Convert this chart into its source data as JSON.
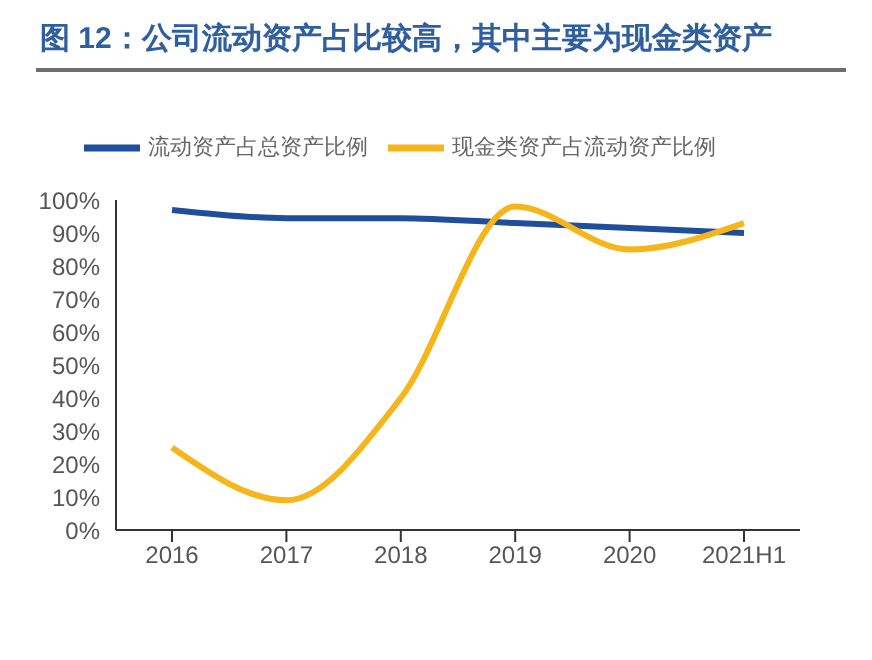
{
  "chart_data": {
    "type": "line",
    "title": "图 12：公司流动资产占比较高，其中主要为现金类资产",
    "categories": [
      "2016",
      "2017",
      "2018",
      "2019",
      "2020",
      "2021H1"
    ],
    "series": [
      {
        "name": "流动资产占总资产比例",
        "color": "#1f4e9c",
        "values": [
          97,
          94.5,
          94.5,
          93,
          91.5,
          90
        ]
      },
      {
        "name": "现金类资产占流动资产比例",
        "color": "#f5b51b",
        "values": [
          25,
          9,
          40,
          98,
          85,
          93
        ]
      }
    ],
    "ylim": [
      0,
      100
    ],
    "yticks": [
      {
        "value": 0,
        "label": "0%"
      },
      {
        "value": 10,
        "label": "10%"
      },
      {
        "value": 20,
        "label": "20%"
      },
      {
        "value": 30,
        "label": "30%"
      },
      {
        "value": 40,
        "label": "40%"
      },
      {
        "value": 50,
        "label": "50%"
      },
      {
        "value": 60,
        "label": "60%"
      },
      {
        "value": 70,
        "label": "70%"
      },
      {
        "value": 80,
        "label": "80%"
      },
      {
        "value": 90,
        "label": "90%"
      },
      {
        "value": 100,
        "label": "100%"
      }
    ],
    "grid": false,
    "legend": "top",
    "marker": "none",
    "line_style": "solid"
  }
}
